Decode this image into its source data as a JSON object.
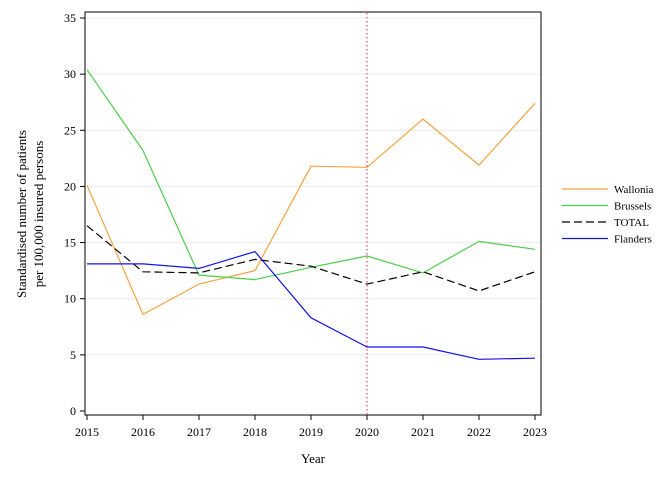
{
  "chart_data": {
    "type": "line",
    "xlabel": "Year",
    "ylabel_lines": [
      "Standardised number of patients",
      "per 100,000 insured persons"
    ],
    "x": [
      2015,
      2016,
      2017,
      2018,
      2019,
      2020,
      2021,
      2022,
      2023
    ],
    "xticks": [
      "2015",
      "2016",
      "2017",
      "2018",
      "2019",
      "2020",
      "2021",
      "2022",
      "2023"
    ],
    "ylim": [
      0,
      35
    ],
    "yticks": [
      "0",
      "5",
      "10",
      "15",
      "20",
      "25",
      "30",
      "35"
    ],
    "grid": "horizontal",
    "reference_line": {
      "x": 2020,
      "color": "#e0487a",
      "style": "dotted"
    },
    "legend_position": "right",
    "series": [
      {
        "name": "Wallonia",
        "color": "#f5a340",
        "dash": "solid",
        "values": [
          20.1,
          8.6,
          11.3,
          12.5,
          21.8,
          21.7,
          26.0,
          21.9,
          27.4
        ]
      },
      {
        "name": "Brussels",
        "color": "#4ccf4c",
        "dash": "solid",
        "values": [
          30.4,
          23.2,
          12.1,
          11.7,
          12.8,
          13.8,
          12.3,
          15.1,
          14.4
        ]
      },
      {
        "name": "TOTAL",
        "color": "#000000",
        "dash": "dashed",
        "values": [
          16.5,
          12.4,
          12.3,
          13.5,
          12.9,
          11.3,
          12.4,
          10.7,
          12.4
        ]
      },
      {
        "name": "Flanders",
        "color": "#1414e6",
        "dash": "solid",
        "values": [
          13.1,
          13.1,
          12.7,
          14.2,
          8.3,
          5.7,
          5.7,
          4.6,
          4.7
        ]
      }
    ]
  }
}
